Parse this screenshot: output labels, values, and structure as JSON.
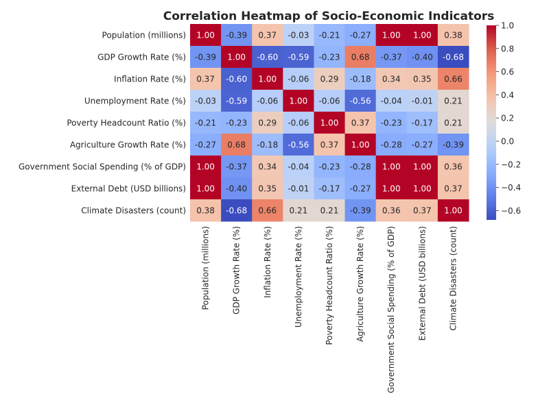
{
  "chart_data": {
    "type": "heatmap",
    "title": "Correlation Heatmap of Socio-Economic Indicators",
    "colormap": "coolwarm",
    "labels": [
      "Population (millions)",
      "GDP Growth Rate (%)",
      "Inflation Rate (%)",
      "Unemployment Rate (%)",
      "Poverty Headcount Ratio (%)",
      "Agriculture Growth Rate (%)",
      "Government Social Spending (% of GDP)",
      "External Debt (USD billions)",
      "Climate Disasters (count)"
    ],
    "values": [
      [
        1.0,
        -0.39,
        0.37,
        -0.03,
        -0.21,
        -0.27,
        1.0,
        1.0,
        0.38
      ],
      [
        -0.39,
        1.0,
        -0.6,
        -0.59,
        -0.23,
        0.68,
        -0.37,
        -0.4,
        -0.68
      ],
      [
        0.37,
        -0.6,
        1.0,
        -0.06,
        0.29,
        -0.18,
        0.34,
        0.35,
        0.66
      ],
      [
        -0.03,
        -0.59,
        -0.06,
        1.0,
        -0.06,
        -0.56,
        -0.04,
        -0.01,
        0.21
      ],
      [
        -0.21,
        -0.23,
        0.29,
        -0.06,
        1.0,
        0.37,
        -0.23,
        -0.17,
        0.21
      ],
      [
        -0.27,
        0.68,
        -0.18,
        -0.56,
        0.37,
        1.0,
        -0.28,
        -0.27,
        -0.39
      ],
      [
        1.0,
        -0.37,
        0.34,
        -0.04,
        -0.23,
        -0.28,
        1.0,
        1.0,
        0.36
      ],
      [
        1.0,
        -0.4,
        0.35,
        -0.01,
        -0.17,
        -0.27,
        1.0,
        1.0,
        0.37
      ],
      [
        0.38,
        -0.68,
        0.66,
        0.21,
        0.21,
        -0.39,
        0.36,
        0.37,
        1.0
      ]
    ],
    "vmin": -0.68,
    "vmax": 1.0,
    "colorbar_ticks": [
      "1.0",
      "0.8",
      "0.6",
      "0.4",
      "0.2",
      "0.0",
      "−0.2",
      "−0.4",
      "−0.6"
    ],
    "colorbar_tick_values": [
      1.0,
      0.8,
      0.6,
      0.4,
      0.2,
      0.0,
      -0.2,
      -0.4,
      -0.6
    ],
    "annotation_format": "2 decimals"
  }
}
